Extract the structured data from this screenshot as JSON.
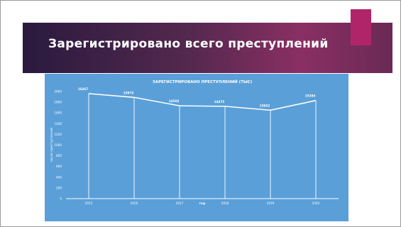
{
  "slide": {
    "title": "Зарегистрировано всего преступлений",
    "colors": {
      "banner": "#54284f",
      "accent": "#b0246a",
      "chart_bg": "#5a9fd8",
      "line": "#ffffff"
    }
  },
  "chart_data": {
    "type": "line",
    "title": "ЗАРЕГИСТРИРОВАНО ПРЕСТУПЛЕНИЙ (ТЫС)",
    "xlabel": "год",
    "ylabel": "число преступлений",
    "categories": [
      "2015",
      "2016",
      "2017",
      "2018",
      "2019",
      "2020"
    ],
    "series": [
      {
        "values": [
          16467,
          15876,
          14560,
          14475,
          13862,
          15384
        ]
      }
    ],
    "data_labels": [
      "16467",
      "15876",
      "14560",
      "14475",
      "13862",
      "15384"
    ],
    "yticks": [
      "0",
      "200",
      "400",
      "600",
      "800",
      "1000",
      "1200",
      "1400",
      "1600",
      "1800",
      "2000"
    ],
    "ylim": [
      0,
      2000
    ],
    "grid": false,
    "legend": "none"
  }
}
